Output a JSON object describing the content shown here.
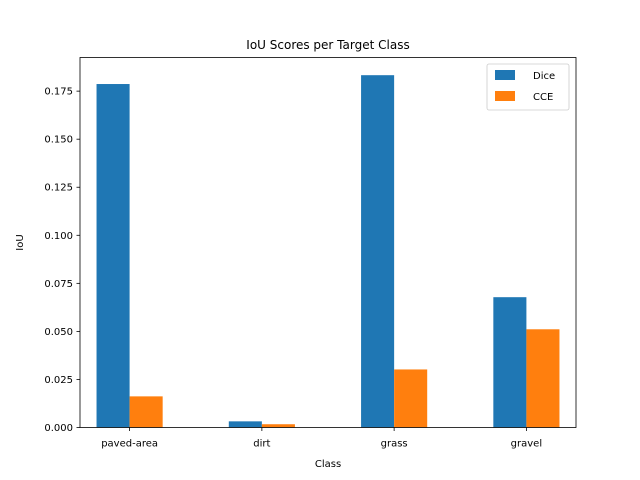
{
  "chart_data": {
    "type": "bar",
    "title": "IoU Scores per Target Class",
    "xlabel": "Class",
    "ylabel": "IoU",
    "categories": [
      "paved-area",
      "dirt",
      "grass",
      "gravel"
    ],
    "series": [
      {
        "name": "Dice",
        "values": [
          0.1787,
          0.0032,
          0.1833,
          0.0678
        ],
        "color": "#1f77b4"
      },
      {
        "name": "CCE",
        "values": [
          0.0162,
          0.0017,
          0.0302,
          0.0511
        ],
        "color": "#ff7f0e"
      }
    ],
    "ylim": [
      0,
      0.1925
    ],
    "yticks": [
      0.0,
      0.025,
      0.05,
      0.075,
      0.1,
      0.125,
      0.15,
      0.175
    ],
    "ytick_labels": [
      "0.000",
      "0.025",
      "0.050",
      "0.075",
      "0.100",
      "0.125",
      "0.150",
      "0.175"
    ],
    "grid": false,
    "legend_position": "top-right"
  }
}
